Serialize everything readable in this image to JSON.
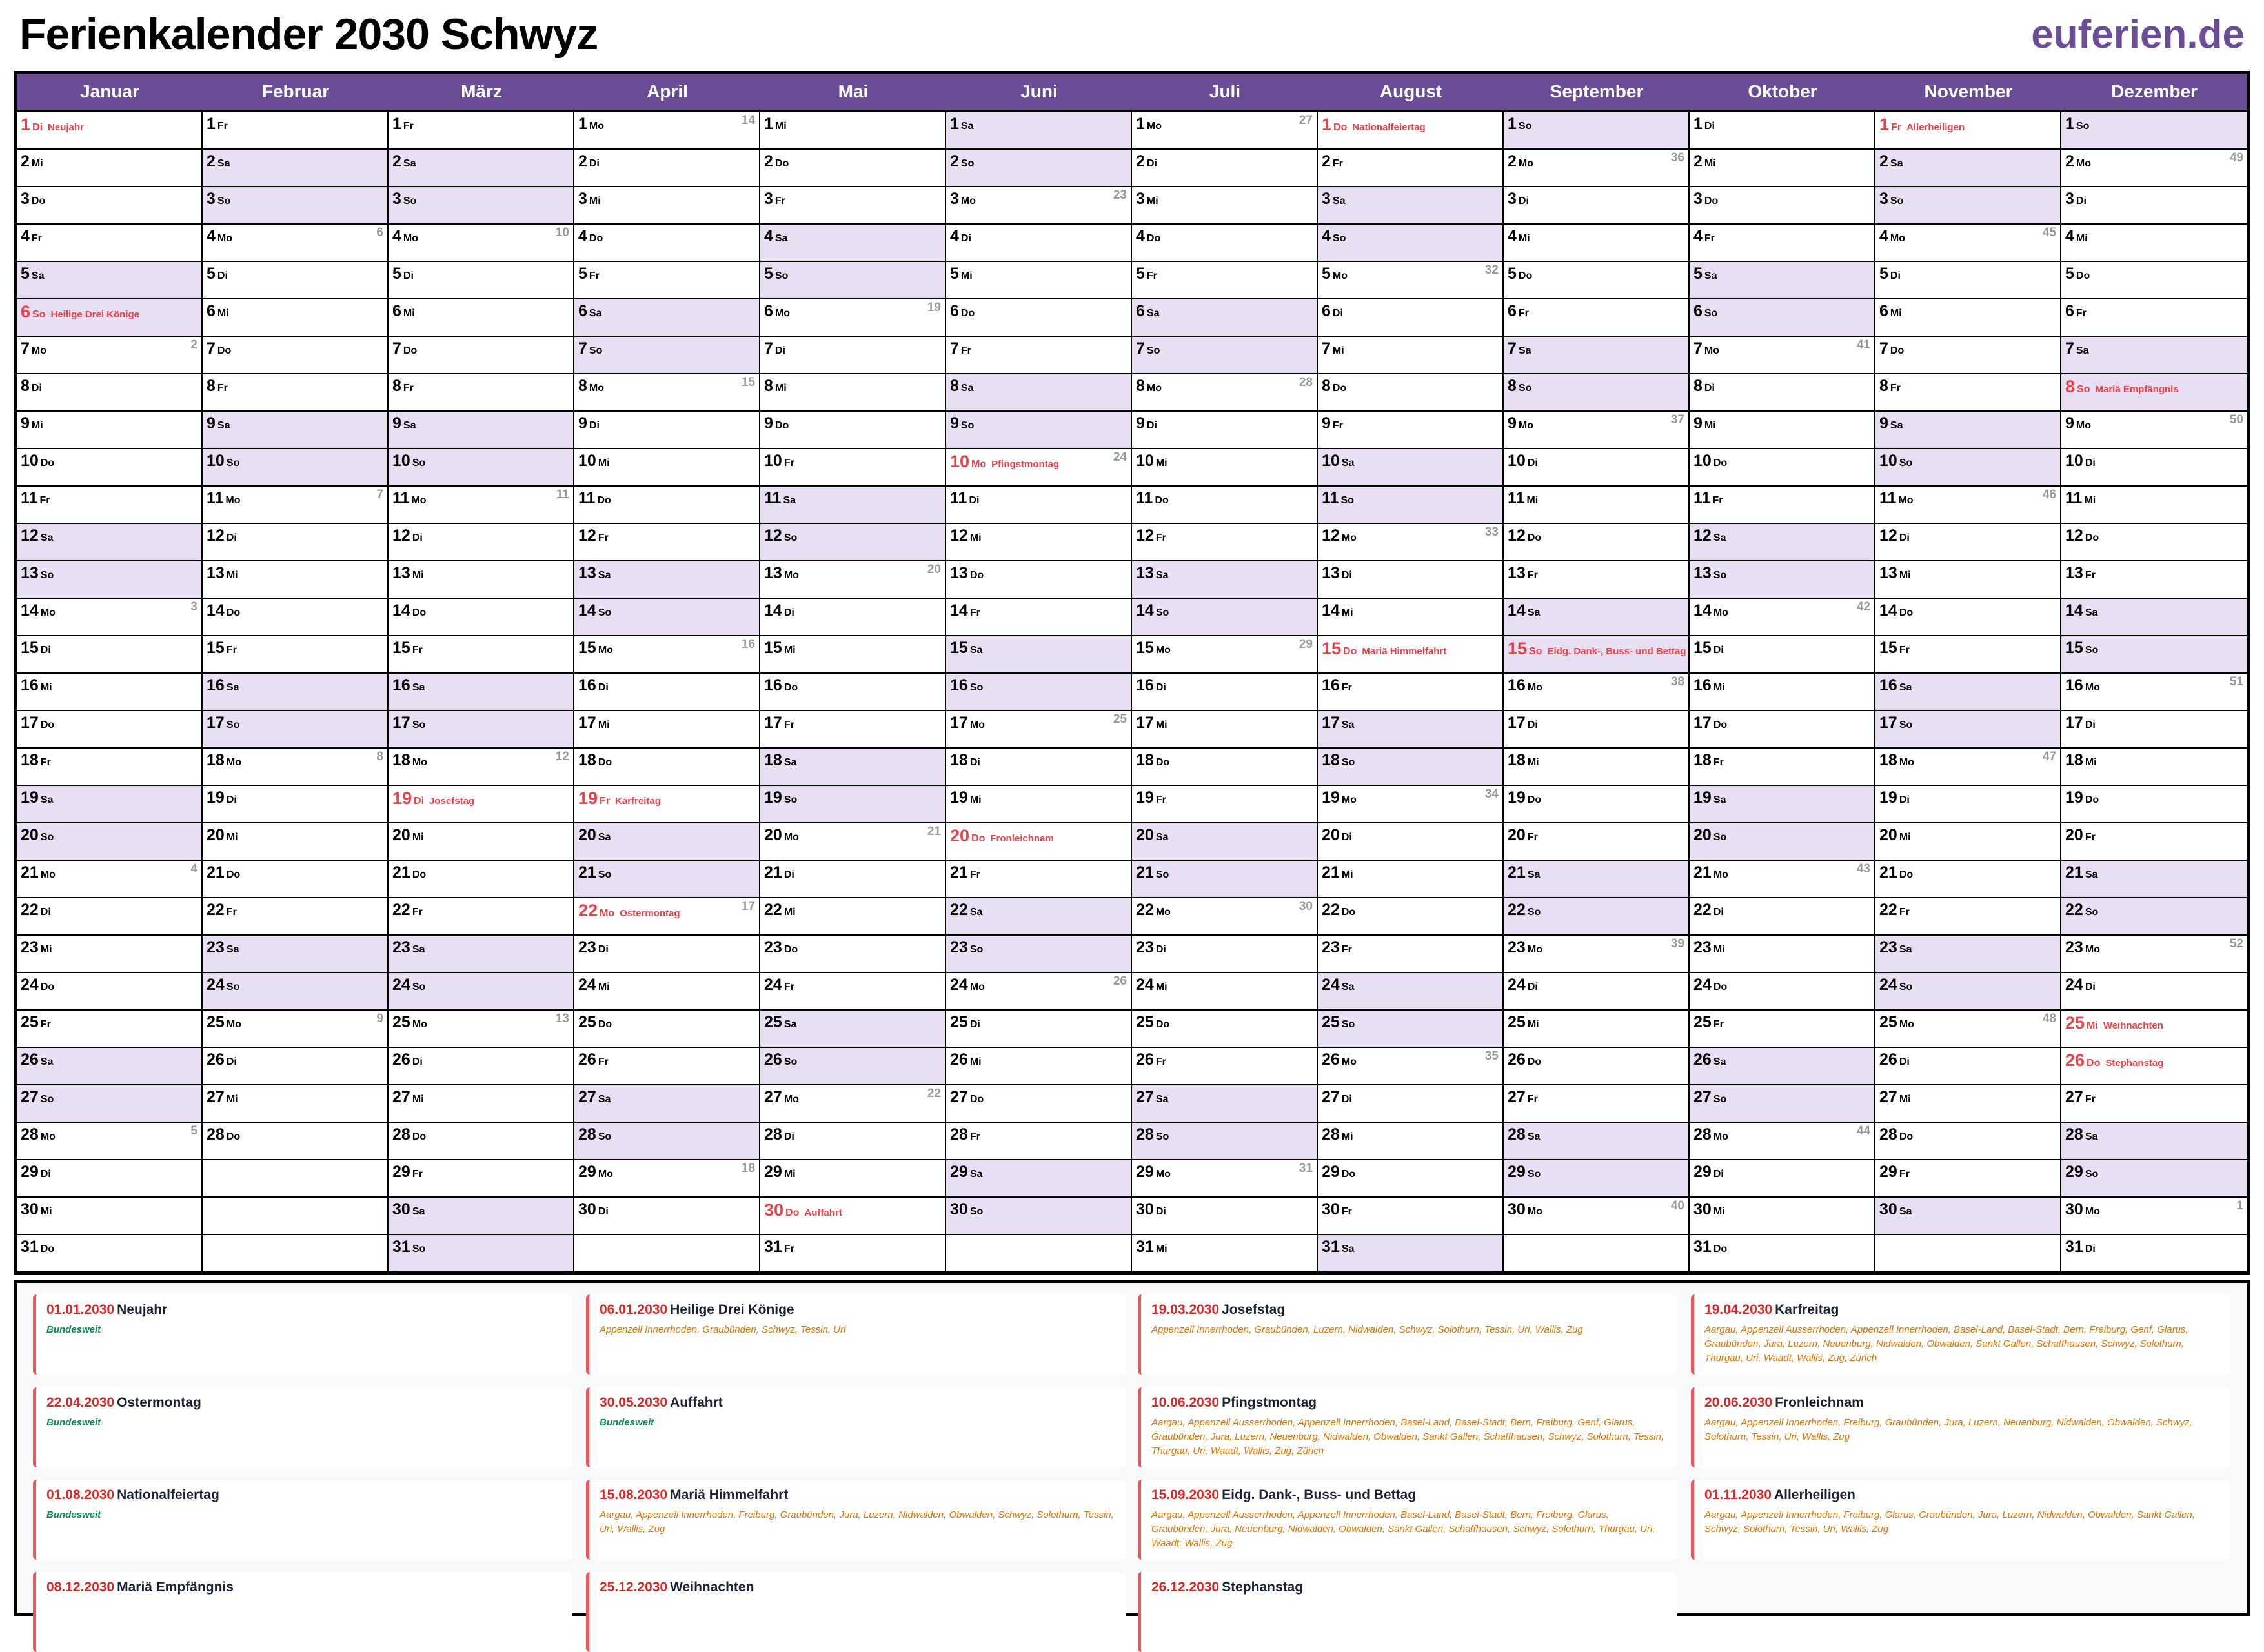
{
  "header": {
    "title": "Ferienkalender 2030 Schwyz",
    "logo": "euferien.de"
  },
  "colors": {
    "brand": "#6b4c96",
    "weekend": "#e8dff3",
    "holiday": "#e8424a",
    "week_number": "#999999",
    "nationwide": "#0a8a5a",
    "regional": "#d97706"
  },
  "calendar": {
    "year": 2030,
    "months": [
      "Januar",
      "Februar",
      "März",
      "April",
      "Mai",
      "Juni",
      "Juli",
      "August",
      "September",
      "Oktober",
      "November",
      "Dezember"
    ],
    "weekdays": [
      "So",
      "Mo",
      "Di",
      "Mi",
      "Do",
      "Fr",
      "Sa"
    ],
    "holidays": [
      {
        "month": 1,
        "day": 1,
        "label": "Neujahr"
      },
      {
        "month": 1,
        "day": 6,
        "label": "Heilige Drei Könige"
      },
      {
        "month": 3,
        "day": 19,
        "label": "Josefstag"
      },
      {
        "month": 4,
        "day": 19,
        "label": "Karfreitag"
      },
      {
        "month": 4,
        "day": 22,
        "label": "Ostermontag"
      },
      {
        "month": 5,
        "day": 30,
        "label": "Auffahrt"
      },
      {
        "month": 6,
        "day": 10,
        "label": "Pfingstmontag"
      },
      {
        "month": 6,
        "day": 20,
        "label": "Fronleichnam"
      },
      {
        "month": 8,
        "day": 1,
        "label": "Nationalfeiertag"
      },
      {
        "month": 8,
        "day": 15,
        "label": "Mariä Himmelfahrt"
      },
      {
        "month": 9,
        "day": 15,
        "label": "Eidg. Dank-, Buss- und Bettag"
      },
      {
        "month": 11,
        "day": 1,
        "label": "Allerheiligen"
      },
      {
        "month": 12,
        "day": 8,
        "label": "Mariä Empfängnis"
      },
      {
        "month": 12,
        "day": 25,
        "label": "Weihnachten"
      },
      {
        "month": 12,
        "day": 26,
        "label": "Stephanstag"
      }
    ]
  },
  "holiday_list": [
    {
      "date": "01.01.2030",
      "name": "Neujahr",
      "regions": "Bundesweit",
      "nationwide": true
    },
    {
      "date": "06.01.2030",
      "name": "Heilige Drei Könige",
      "regions": "Appenzell Innerrhoden, Graubünden, Schwyz, Tessin, Uri",
      "nationwide": false
    },
    {
      "date": "19.03.2030",
      "name": "Josefstag",
      "regions": "Appenzell Innerrhoden, Graubünden, Luzern, Nidwalden, Schwyz, Solothurn, Tessin, Uri, Wallis, Zug",
      "nationwide": false
    },
    {
      "date": "19.04.2030",
      "name": "Karfreitag",
      "regions": "Aargau, Appenzell Ausserrhoden, Appenzell Innerrhoden, Basel-Land, Basel-Stadt, Bern, Freiburg, Genf, Glarus, Graubünden, Jura, Luzern, Neuenburg, Nidwalden, Obwalden, Sankt Gallen, Schaffhausen, Schwyz, Solothurn, Thurgau, Uri, Waadt, Wallis, Zug, Zürich",
      "nationwide": false
    },
    {
      "date": "22.04.2030",
      "name": "Ostermontag",
      "regions": "Bundesweit",
      "nationwide": true
    },
    {
      "date": "30.05.2030",
      "name": "Auffahrt",
      "regions": "Bundesweit",
      "nationwide": true
    },
    {
      "date": "10.06.2030",
      "name": "Pfingstmontag",
      "regions": "Aargau, Appenzell Ausserrhoden, Appenzell Innerrhoden, Basel-Land, Basel-Stadt, Bern, Freiburg, Genf, Glarus, Graubünden, Jura, Luzern, Neuenburg, Nidwalden, Obwalden, Sankt Gallen, Schaffhausen, Schwyz, Solothurn, Tessin, Thurgau, Uri, Waadt, Wallis, Zug, Zürich",
      "nationwide": false
    },
    {
      "date": "20.06.2030",
      "name": "Fronleichnam",
      "regions": "Aargau, Appenzell Innerrhoden, Freiburg, Graubünden, Jura, Luzern, Neuenburg, Nidwalden, Obwalden, Schwyz, Solothurn, Tessin, Uri, Wallis, Zug",
      "nationwide": false
    },
    {
      "date": "01.08.2030",
      "name": "Nationalfeiertag",
      "regions": "Bundesweit",
      "nationwide": true
    },
    {
      "date": "15.08.2030",
      "name": "Mariä Himmelfahrt",
      "regions": "Aargau, Appenzell Innerrhoden, Freiburg, Graubünden, Jura, Luzern, Nidwalden, Obwalden, Schwyz, Solothurn, Tessin, Uri, Wallis, Zug",
      "nationwide": false
    },
    {
      "date": "15.09.2030",
      "name": "Eidg. Dank-, Buss- und Bettag",
      "regions": "Aargau, Appenzell Ausserrhoden, Appenzell Innerrhoden, Basel-Land, Basel-Stadt, Bern, Freiburg, Glarus, Graubünden, Jura, Neuenburg, Nidwalden, Obwalden, Sankt Gallen, Schaffhausen, Schwyz, Solothurn, Thurgau, Uri, Waadt, Wallis, Zug",
      "nationwide": false
    },
    {
      "date": "01.11.2030",
      "name": "Allerheiligen",
      "regions": "Aargau, Appenzell Innerrhoden, Freiburg, Glarus, Graubünden, Jura, Luzern, Nidwalden, Obwalden, Sankt Gallen, Schwyz, Solothurn, Tessin, Uri, Wallis, Zug",
      "nationwide": false
    },
    {
      "date": "08.12.2030",
      "name": "Mariä Empfängnis",
      "regions": "",
      "nationwide": false
    },
    {
      "date": "25.12.2030",
      "name": "Weihnachten",
      "regions": "",
      "nationwide": false
    },
    {
      "date": "26.12.2030",
      "name": "Stephanstag",
      "regions": "",
      "nationwide": false
    }
  ]
}
